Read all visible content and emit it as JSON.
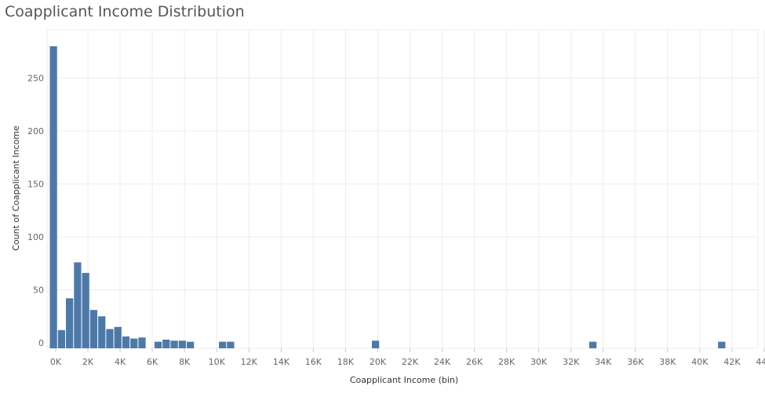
{
  "title": "Coapplicant Income Distribution",
  "colors": {
    "bar": "#4e79a7",
    "grid": "#ededed",
    "axis": "#cccccc"
  },
  "chart_data": {
    "type": "bar",
    "title": "Coapplicant Income Distribution",
    "xlabel": "Coapplicant Income (bin)",
    "ylabel": "Count of Coapplicant Income",
    "bin_width": 500,
    "xlim": [
      0,
      44000
    ],
    "ylim": [
      0,
      285
    ],
    "x_ticks": [
      0,
      2000,
      4000,
      6000,
      8000,
      10000,
      12000,
      14000,
      16000,
      18000,
      20000,
      22000,
      24000,
      26000,
      28000,
      30000,
      32000,
      34000,
      36000,
      38000,
      40000,
      42000,
      44000
    ],
    "x_tick_labels": [
      "0K",
      "2K",
      "4K",
      "6K",
      "8K",
      "10K",
      "12K",
      "14K",
      "16K",
      "18K",
      "20K",
      "22K",
      "24K",
      "26K",
      "28K",
      "30K",
      "32K",
      "34K",
      "36K",
      "38K",
      "40K",
      "42K",
      "44K"
    ],
    "y_ticks": [
      0,
      50,
      100,
      150,
      200,
      250
    ],
    "y_tick_labels": [
      "0",
      "50",
      "100",
      "150",
      "200",
      "250"
    ],
    "grid": true,
    "bins": [
      0,
      500,
      1000,
      1500,
      2000,
      2500,
      3000,
      3500,
      4000,
      4500,
      5000,
      5500,
      6000,
      6500,
      7000,
      7500,
      8000,
      8500,
      10500,
      11000,
      20000,
      33500,
      41500
    ],
    "values": [
      280,
      12,
      42,
      76,
      66,
      31,
      25,
      13,
      15,
      6,
      4,
      5,
      0,
      1,
      3,
      2,
      2,
      1,
      1,
      1,
      2,
      1,
      1
    ]
  }
}
